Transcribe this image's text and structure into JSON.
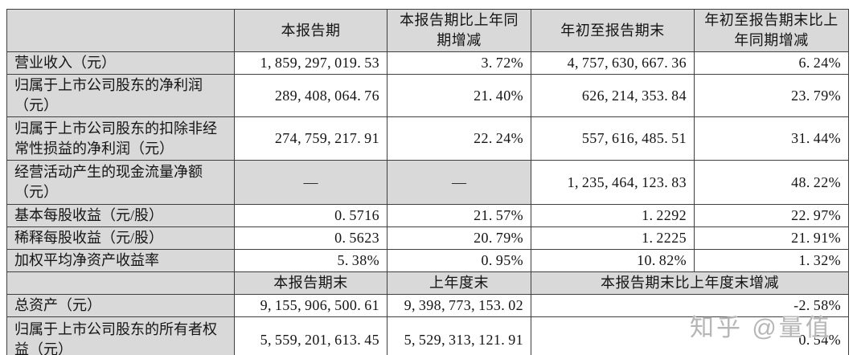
{
  "colors": {
    "header_fill": "#d9d9d9",
    "border": "#3f3f3f",
    "text": "#141414",
    "watermark": "#b0b0b0",
    "page_background": "#ffffff"
  },
  "watermark": {
    "text": "知乎 @量值"
  },
  "table": {
    "column_headers_period": {
      "label": "",
      "current_period": "本报告期",
      "current_period_yoy": "本报告期比上年同期增减",
      "year_to_date": "年初至报告期末",
      "year_to_date_yoy": "年初至报告期末比上年同期增减"
    },
    "rows_period": [
      {
        "label": "营业收入（元）",
        "cells": [
          "1,859,297,019.53",
          "3.72%",
          "4,757,630,667.36",
          "6.24%"
        ]
      },
      {
        "label": "归属于上市公司股东的净利润（元）",
        "cells": [
          "289,408,064.76",
          "21.40%",
          "626,214,353.84",
          "23.79%"
        ]
      },
      {
        "label": "归属于上市公司股东的扣除非经常性损益的净利润（元）",
        "cells": [
          "274,759,217.91",
          "22.24%",
          "557,616,485.51",
          "31.44%"
        ]
      },
      {
        "label": "经营活动产生的现金流量净额（元）",
        "cells": [
          "—",
          "—",
          "1,235,464,123.83",
          "48.22%"
        ]
      },
      {
        "label": "基本每股收益（元/股）",
        "cells": [
          "0.5716",
          "21.57%",
          "1.2292",
          "22.97%"
        ]
      },
      {
        "label": "稀释每股收益（元/股）",
        "cells": [
          "0.5623",
          "20.79%",
          "1.2225",
          "21.91%"
        ]
      },
      {
        "label": "加权平均净资产收益率",
        "cells": [
          "5.38%",
          "0.95%",
          "10.82%",
          "1.32%"
        ]
      }
    ],
    "column_headers_balance": {
      "label": "",
      "period_end": "本报告期末",
      "prev_year_end": "上年度末",
      "period_end_change": "本报告期末比上年度末增减"
    },
    "rows_balance": [
      {
        "label": "总资产（元）",
        "cells": [
          "9,155,906,500.61",
          "9,398,773,153.02",
          "-2.58%"
        ]
      },
      {
        "label": "归属于上市公司股东的所有者权益（元）",
        "cells": [
          "5,559,201,613.45",
          "5,529,313,121.91",
          "0.54%"
        ]
      }
    ]
  }
}
